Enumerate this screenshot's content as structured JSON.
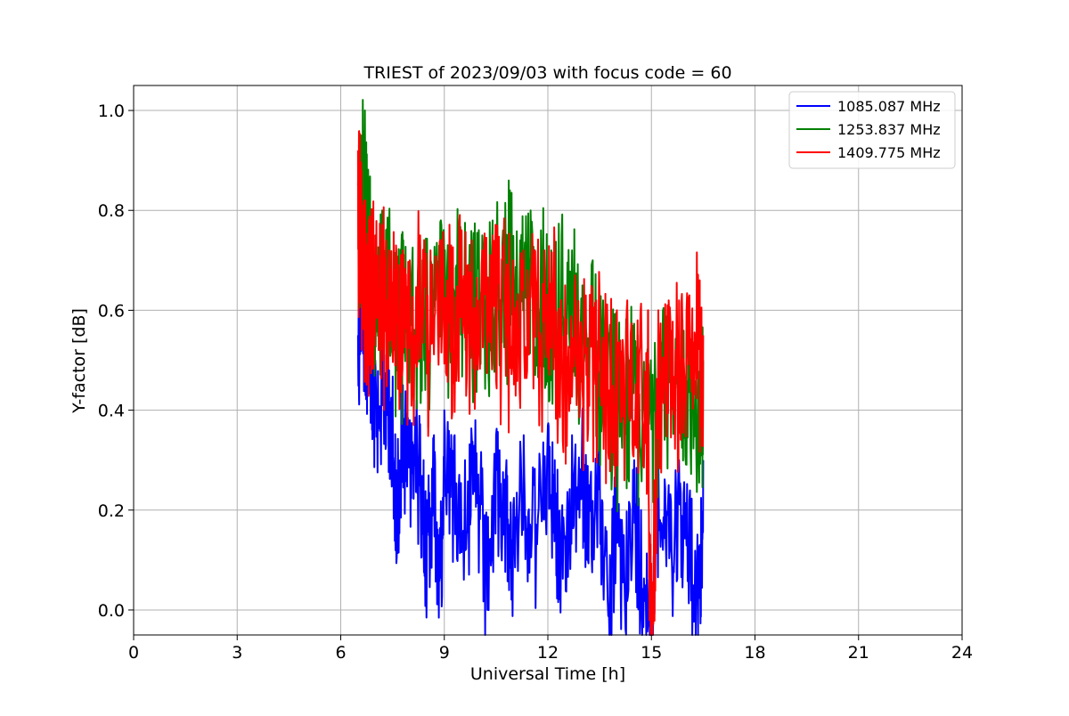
{
  "chart_data": {
    "type": "line",
    "title": "TRIEST of 2023/09/03 with focus code = 60",
    "xlabel": "Universal Time [h]",
    "ylabel": "Y-factor [dB]",
    "xlim": [
      0,
      24
    ],
    "ylim": [
      -0.05,
      1.05
    ],
    "xticks": [
      0,
      3,
      6,
      9,
      12,
      15,
      18,
      21,
      24
    ],
    "xtick_labels": [
      "0",
      "3",
      "6",
      "9",
      "12",
      "15",
      "18",
      "21",
      "24"
    ],
    "yticks": [
      0.0,
      0.2,
      0.4,
      0.6,
      0.8,
      1.0
    ],
    "ytick_labels": [
      "0.0",
      "0.2",
      "0.4",
      "0.6",
      "0.8",
      "1.0"
    ],
    "grid": true,
    "legend_position": "top-right",
    "x_range_of_data": [
      6.5,
      16.5
    ],
    "series": [
      {
        "name": "1085.087 MHz",
        "color": "#0000ff",
        "values": [
          [
            6.5,
            0.55
          ],
          [
            6.6,
            0.78
          ],
          [
            6.7,
            0.6
          ],
          [
            6.8,
            0.62
          ],
          [
            6.9,
            0.55
          ],
          [
            7.0,
            0.5
          ],
          [
            7.2,
            0.52
          ],
          [
            7.4,
            0.48
          ],
          [
            7.5,
            0.42
          ],
          [
            7.6,
            0.28
          ],
          [
            7.8,
            0.45
          ],
          [
            8.0,
            0.38
          ],
          [
            8.2,
            0.42
          ],
          [
            8.4,
            0.3
          ],
          [
            8.5,
            0.22
          ],
          [
            8.7,
            0.35
          ],
          [
            8.85,
            0.15
          ],
          [
            9.0,
            0.4
          ],
          [
            9.3,
            0.35
          ],
          [
            9.6,
            0.3
          ],
          [
            9.9,
            0.38
          ],
          [
            10.2,
            0.18
          ],
          [
            10.5,
            0.35
          ],
          [
            10.8,
            0.3
          ],
          [
            11.0,
            0.21
          ],
          [
            11.3,
            0.35
          ],
          [
            11.6,
            0.25
          ],
          [
            12.0,
            0.37
          ],
          [
            12.2,
            0.3
          ],
          [
            12.4,
            0.15
          ],
          [
            12.7,
            0.35
          ],
          [
            13.0,
            0.4
          ],
          [
            13.2,
            0.25
          ],
          [
            13.5,
            0.35
          ],
          [
            13.8,
            0.11
          ],
          [
            14.0,
            0.3
          ],
          [
            14.2,
            0.15
          ],
          [
            14.5,
            0.3
          ],
          [
            14.7,
            0.2
          ],
          [
            15.0,
            0.05
          ],
          [
            15.2,
            0.32
          ],
          [
            15.5,
            0.25
          ],
          [
            15.8,
            0.3
          ],
          [
            16.1,
            0.22
          ],
          [
            16.4,
            0.13
          ],
          [
            16.5,
            0.3
          ]
        ]
      },
      {
        "name": "1253.837 MHz",
        "color": "#008000",
        "values": [
          [
            6.5,
            0.85
          ],
          [
            6.6,
            0.95
          ],
          [
            6.7,
            1.0
          ],
          [
            6.8,
            0.85
          ],
          [
            6.9,
            0.75
          ],
          [
            7.0,
            0.72
          ],
          [
            7.2,
            0.8
          ],
          [
            7.4,
            0.75
          ],
          [
            7.6,
            0.7
          ],
          [
            7.8,
            0.72
          ],
          [
            8.0,
            0.7
          ],
          [
            8.3,
            0.73
          ],
          [
            8.6,
            0.7
          ],
          [
            8.9,
            0.78
          ],
          [
            9.2,
            0.72
          ],
          [
            9.5,
            0.76
          ],
          [
            9.8,
            0.72
          ],
          [
            10.1,
            0.75
          ],
          [
            10.4,
            0.78
          ],
          [
            10.7,
            0.76
          ],
          [
            10.9,
            0.84
          ],
          [
            11.2,
            0.74
          ],
          [
            11.5,
            0.8
          ],
          [
            11.8,
            0.76
          ],
          [
            12.1,
            0.72
          ],
          [
            12.4,
            0.75
          ],
          [
            12.7,
            0.72
          ],
          [
            13.0,
            0.65
          ],
          [
            13.3,
            0.7
          ],
          [
            13.6,
            0.62
          ],
          [
            14.0,
            0.55
          ],
          [
            14.3,
            0.6
          ],
          [
            14.6,
            0.55
          ],
          [
            14.9,
            0.52
          ],
          [
            15.2,
            0.57
          ],
          [
            15.5,
            0.6
          ],
          [
            15.8,
            0.55
          ],
          [
            16.1,
            0.58
          ],
          [
            16.4,
            0.52
          ],
          [
            16.5,
            0.5
          ]
        ]
      },
      {
        "name": "1409.775 MHz",
        "color": "#ff0000",
        "values": [
          [
            6.5,
            0.92
          ],
          [
            6.6,
            0.88
          ],
          [
            6.7,
            0.8
          ],
          [
            6.8,
            0.75
          ],
          [
            6.9,
            0.76
          ],
          [
            7.0,
            0.75
          ],
          [
            7.2,
            0.77
          ],
          [
            7.4,
            0.72
          ],
          [
            7.6,
            0.73
          ],
          [
            7.8,
            0.72
          ],
          [
            8.0,
            0.7
          ],
          [
            8.3,
            0.75
          ],
          [
            8.6,
            0.72
          ],
          [
            8.9,
            0.74
          ],
          [
            9.2,
            0.73
          ],
          [
            9.5,
            0.76
          ],
          [
            9.8,
            0.74
          ],
          [
            10.1,
            0.72
          ],
          [
            10.4,
            0.75
          ],
          [
            10.7,
            0.73
          ],
          [
            11.0,
            0.7
          ],
          [
            11.3,
            0.72
          ],
          [
            11.6,
            0.7
          ],
          [
            11.9,
            0.72
          ],
          [
            12.2,
            0.7
          ],
          [
            12.5,
            0.65
          ],
          [
            12.8,
            0.67
          ],
          [
            13.1,
            0.63
          ],
          [
            13.4,
            0.62
          ],
          [
            13.7,
            0.6
          ],
          [
            14.0,
            0.6
          ],
          [
            14.3,
            0.62
          ],
          [
            14.6,
            0.58
          ],
          [
            14.9,
            0.6
          ],
          [
            15.0,
            0.0
          ],
          [
            15.2,
            0.6
          ],
          [
            15.5,
            0.62
          ],
          [
            15.8,
            0.62
          ],
          [
            16.1,
            0.63
          ],
          [
            16.4,
            0.66
          ],
          [
            16.5,
            0.55
          ]
        ]
      }
    ]
  }
}
